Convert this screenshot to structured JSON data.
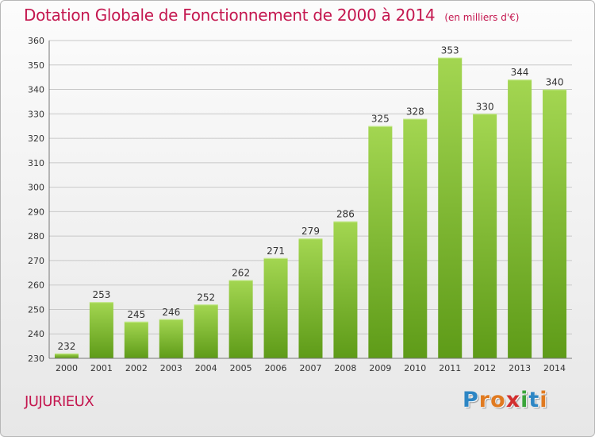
{
  "title": "Dotation Globale de Fonctionnement de 2000 à 2014",
  "unit_note": "(en milliers d'€)",
  "town": "JUJURIEUX",
  "logo_text": "Proxiti",
  "colors": {
    "title": "#c4174f",
    "bar_light": "#9fd34f",
    "bar_dark": "#5f9c1a",
    "grid": "#c8c8c8",
    "text": "#333333"
  },
  "chart_data": {
    "type": "bar",
    "categories": [
      "2000",
      "2001",
      "2002",
      "2003",
      "2004",
      "2005",
      "2006",
      "2007",
      "2008",
      "2009",
      "2010",
      "2011",
      "2012",
      "2013",
      "2014"
    ],
    "values": [
      232,
      253,
      245,
      246,
      252,
      262,
      271,
      279,
      286,
      325,
      328,
      353,
      330,
      344,
      340
    ],
    "yticks": [
      230,
      240,
      250,
      260,
      270,
      280,
      290,
      300,
      310,
      320,
      330,
      340,
      350,
      360
    ],
    "ylim": [
      230,
      360
    ],
    "grid": true,
    "legend": "none"
  }
}
